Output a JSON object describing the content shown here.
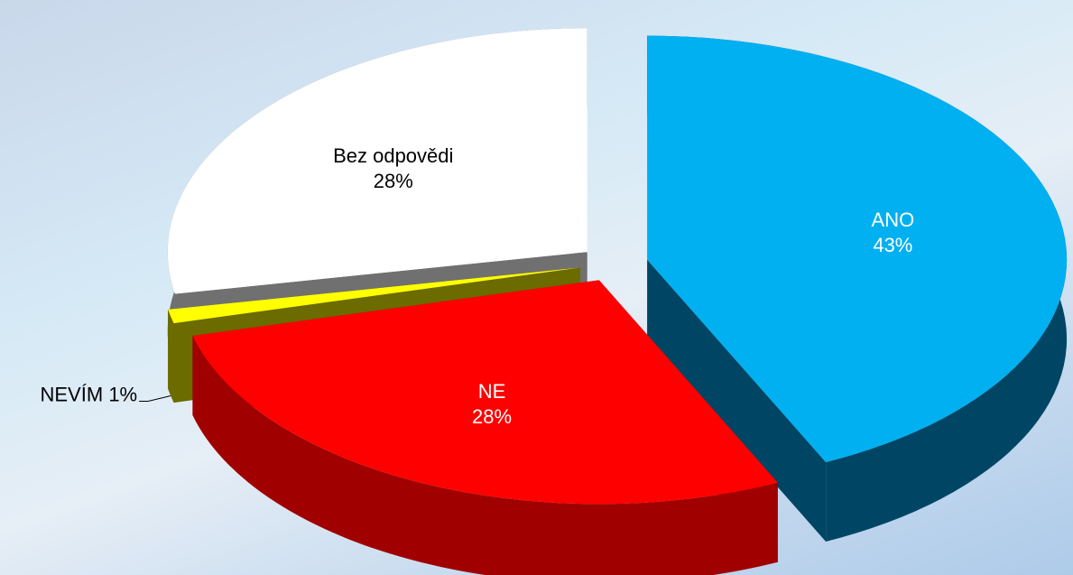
{
  "chart_data": {
    "type": "pie3d",
    "categories": [
      "ANO",
      "NE",
      "NEVÍM",
      "Bez odpovědi"
    ],
    "values": [
      43,
      28,
      1,
      28
    ],
    "value_labels": [
      "43%",
      "28%",
      "1%",
      "28%"
    ],
    "colors": [
      "#00b0f0",
      "#ff0000",
      "#ffff00",
      "#ffffff"
    ],
    "side_colors": [
      "#004664",
      "#a00000",
      "#6b6b00",
      "#707070"
    ]
  }
}
